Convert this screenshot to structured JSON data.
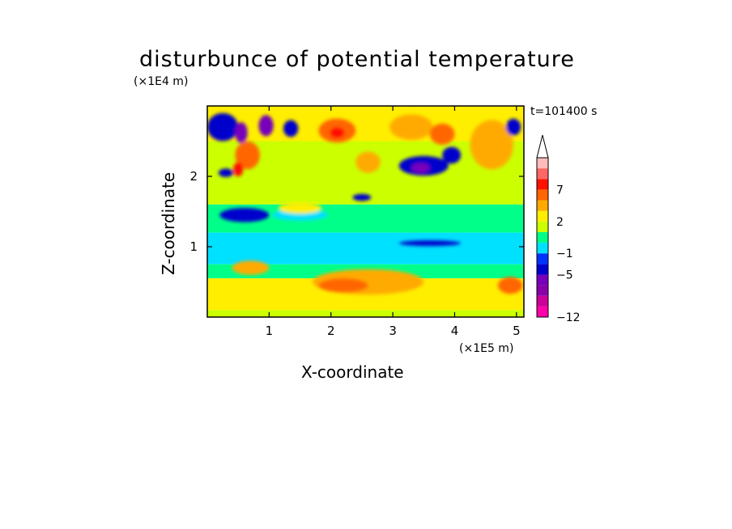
{
  "chart_data": {
    "type": "heatmap",
    "title": "disturbunce of potential temperature",
    "xlabel": "X-coordinate",
    "ylabel": "Z-coordinate",
    "x_unit": "(×1E5 m)",
    "z_unit": "(×1E4 m)",
    "time_label": "t=101400 s",
    "xlim": [
      0,
      5.12
    ],
    "ylim": [
      0,
      3.0
    ],
    "x_ticks": [
      1,
      2,
      3,
      4,
      5
    ],
    "y_ticks": [
      1,
      2
    ],
    "x_tick_labels": [
      "1",
      "2",
      "3",
      "4",
      "5"
    ],
    "y_tick_labels": [
      "1",
      "2"
    ],
    "colorbar": {
      "levels": [
        -12,
        -11,
        -9,
        -7,
        -5,
        -3,
        -1,
        0,
        1,
        2,
        3,
        5,
        7,
        9,
        11
      ],
      "labeled_levels": [
        7,
        2,
        -1,
        -5,
        -12
      ],
      "labels": [
        "7",
        "2",
        "−1",
        "−5",
        "−12"
      ],
      "colors": [
        "#ff00aa",
        "#cc0099",
        "#8800aa",
        "#7700bb",
        "#0000cc",
        "#0033ff",
        "#00e0ff",
        "#00ff88",
        "#ccff00",
        "#ffee00",
        "#ffaa00",
        "#ff6600",
        "#ff1100",
        "#ff6666",
        "#ffbbbb"
      ],
      "extend_top": true
    },
    "field_regions": [
      {
        "x0": 0.0,
        "x1": 5.12,
        "z0": 2.5,
        "z1": 3.0,
        "value": 2
      },
      {
        "x0": 0.0,
        "x1": 5.12,
        "z0": 1.6,
        "z1": 2.5,
        "value": 1
      },
      {
        "x0": 0.0,
        "x1": 5.12,
        "z0": 1.2,
        "z1": 1.6,
        "value": 0
      },
      {
        "x0": 0.0,
        "x1": 5.12,
        "z0": 0.75,
        "z1": 1.2,
        "value": -1
      },
      {
        "x0": 0.0,
        "x1": 5.12,
        "z0": 0.55,
        "z1": 0.75,
        "value": 0
      },
      {
        "x0": 0.0,
        "x1": 5.12,
        "z0": 0.1,
        "z1": 0.55,
        "value": 2
      },
      {
        "x0": 0.0,
        "x1": 5.12,
        "z0": 0.0,
        "z1": 0.1,
        "value": 1
      }
    ],
    "blobs": [
      {
        "x": 0.25,
        "z": 2.7,
        "rx": 0.25,
        "rz": 0.2,
        "value": -5
      },
      {
        "x": 0.55,
        "z": 2.62,
        "rx": 0.1,
        "rz": 0.15,
        "value": -7
      },
      {
        "x": 0.95,
        "z": 2.72,
        "rx": 0.12,
        "rz": 0.15,
        "value": -7
      },
      {
        "x": 1.35,
        "z": 2.68,
        "rx": 0.12,
        "rz": 0.12,
        "value": -5
      },
      {
        "x": 0.65,
        "z": 2.3,
        "rx": 0.2,
        "rz": 0.2,
        "value": 5
      },
      {
        "x": 0.5,
        "z": 2.1,
        "rx": 0.08,
        "rz": 0.1,
        "value": 7
      },
      {
        "x": 0.3,
        "z": 2.05,
        "rx": 0.12,
        "rz": 0.06,
        "value": -5
      },
      {
        "x": 2.1,
        "z": 2.65,
        "rx": 0.3,
        "rz": 0.17,
        "value": 5
      },
      {
        "x": 2.1,
        "z": 2.62,
        "rx": 0.12,
        "rz": 0.08,
        "value": 7
      },
      {
        "x": 2.6,
        "z": 2.2,
        "rx": 0.2,
        "rz": 0.15,
        "value": 3
      },
      {
        "x": 3.3,
        "z": 2.7,
        "rx": 0.35,
        "rz": 0.18,
        "value": 3
      },
      {
        "x": 3.8,
        "z": 2.6,
        "rx": 0.2,
        "rz": 0.15,
        "value": 5
      },
      {
        "x": 3.5,
        "z": 2.15,
        "rx": 0.4,
        "rz": 0.14,
        "value": -5
      },
      {
        "x": 3.45,
        "z": 2.12,
        "rx": 0.15,
        "rz": 0.07,
        "value": -7
      },
      {
        "x": 3.95,
        "z": 2.3,
        "rx": 0.15,
        "rz": 0.12,
        "value": -5
      },
      {
        "x": 4.6,
        "z": 2.45,
        "rx": 0.35,
        "rz": 0.35,
        "value": 3
      },
      {
        "x": 4.95,
        "z": 2.7,
        "rx": 0.12,
        "rz": 0.12,
        "value": -5
      },
      {
        "x": 2.5,
        "z": 1.7,
        "rx": 0.15,
        "rz": 0.05,
        "value": -5
      },
      {
        "x": 0.6,
        "z": 1.45,
        "rx": 0.4,
        "rz": 0.1,
        "value": -5
      },
      {
        "x": 1.5,
        "z": 1.45,
        "rx": 0.45,
        "rz": 0.08,
        "value": -1
      },
      {
        "x": 3.6,
        "z": 1.05,
        "rx": 0.5,
        "rz": 0.04,
        "value": -5
      },
      {
        "x": 0.5,
        "z": 1.05,
        "rx": 0.35,
        "rz": 0.08,
        "value": -1
      },
      {
        "x": 1.5,
        "z": 1.55,
        "rx": 0.35,
        "rz": 0.08,
        "value": 2
      },
      {
        "x": 2.6,
        "z": 0.5,
        "rx": 0.9,
        "rz": 0.18,
        "value": 3
      },
      {
        "x": 2.2,
        "z": 0.45,
        "rx": 0.4,
        "rz": 0.1,
        "value": 5
      },
      {
        "x": 4.9,
        "z": 0.45,
        "rx": 0.2,
        "rz": 0.12,
        "value": 5
      },
      {
        "x": 0.7,
        "z": 0.7,
        "rx": 0.3,
        "rz": 0.1,
        "value": 3
      }
    ]
  }
}
